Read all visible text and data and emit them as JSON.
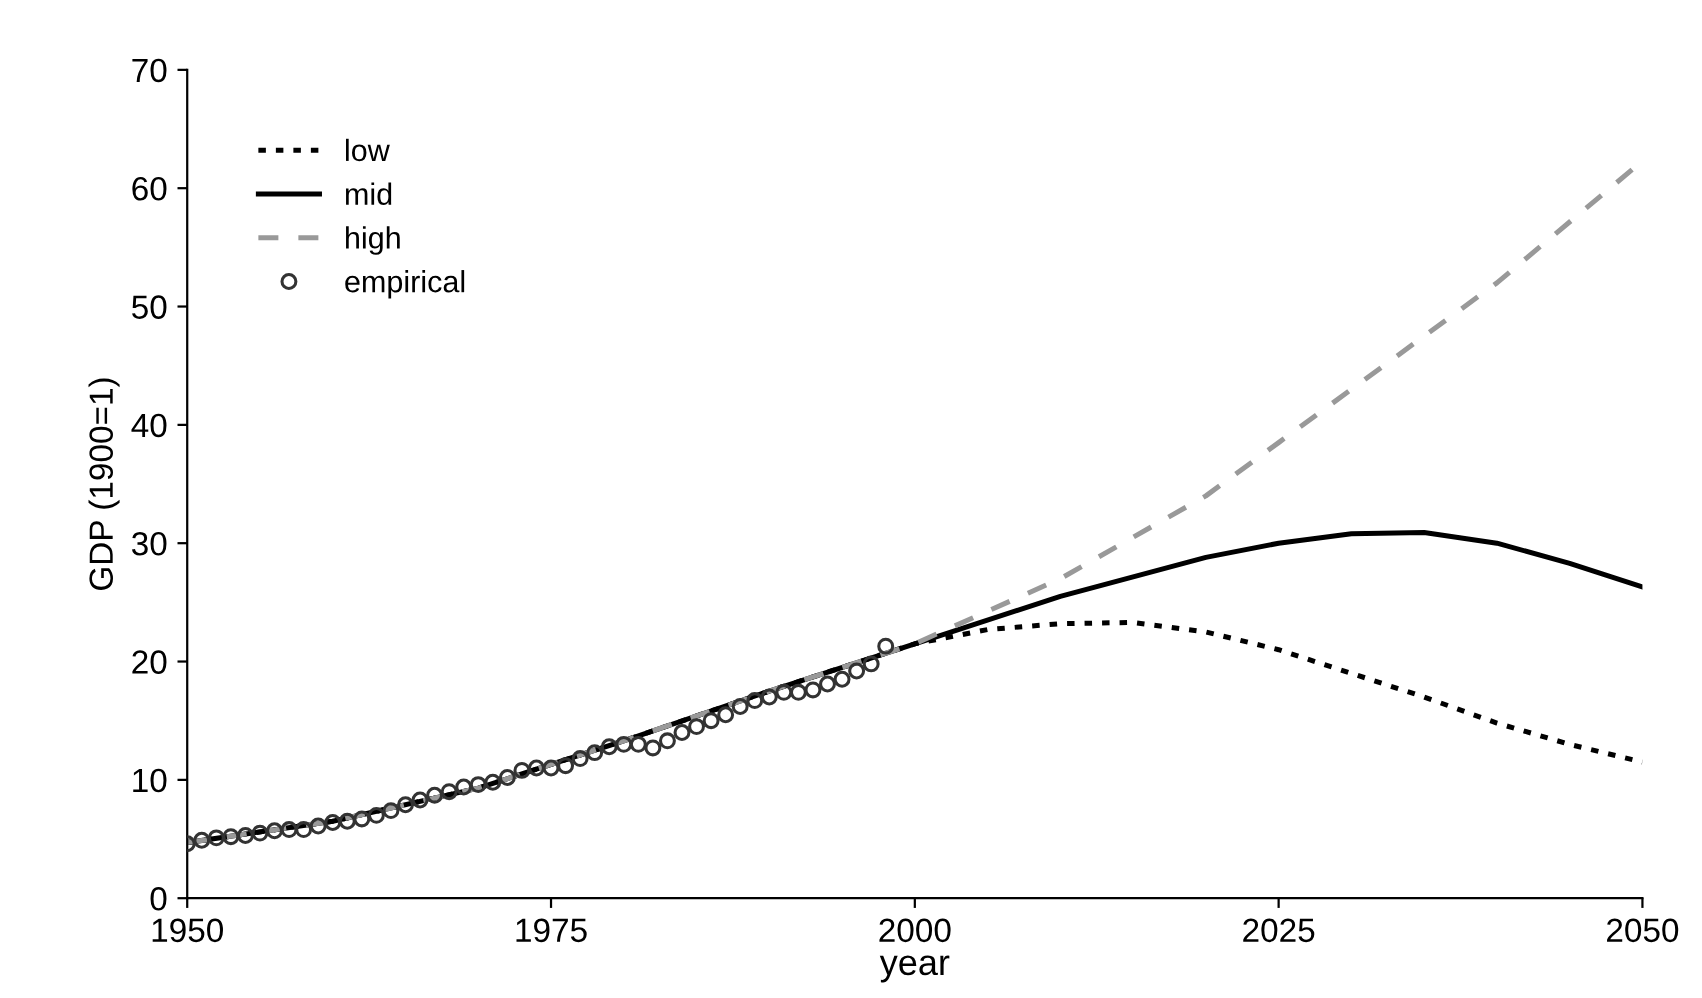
{
  "chart_data": {
    "type": "line",
    "xlabel": "year",
    "ylabel": "GDP (1900=1)",
    "xlim": [
      1950,
      2050
    ],
    "ylim": [
      0,
      70
    ],
    "xticks": [
      1950,
      1975,
      2000,
      2025,
      2050
    ],
    "yticks": [
      0,
      10,
      20,
      30,
      40,
      50,
      60,
      70
    ],
    "grid": false,
    "legend": "top left",
    "series": [
      {
        "name": "low",
        "color": "#000000",
        "line_style": "dotted",
        "x": [
          1950,
          1960,
          1970,
          1975,
          1980,
          1990,
          2000,
          2005,
          2010,
          2015,
          2020,
          2025,
          2030,
          2035,
          2040,
          2045,
          2050
        ],
        "values": [
          4.7,
          6.5,
          9.3,
          11.3,
          13.3,
          17.5,
          21.5,
          22.7,
          23.2,
          23.3,
          22.5,
          21,
          19,
          17,
          14.8,
          13,
          11.5
        ]
      },
      {
        "name": "mid",
        "color": "#000000",
        "line_style": "solid",
        "x": [
          1950,
          1960,
          1970,
          1975,
          1980,
          1990,
          2000,
          2010,
          2020,
          2025,
          2030,
          2035,
          2040,
          2045,
          2050
        ],
        "values": [
          4.7,
          6.5,
          9.3,
          11.3,
          13.3,
          17.5,
          21.5,
          25.5,
          28.8,
          30,
          30.8,
          30.9,
          30,
          28.3,
          26.3
        ]
      },
      {
        "name": "high",
        "color": "#999999",
        "line_style": "dashed",
        "x": [
          1950,
          1960,
          1970,
          1975,
          1980,
          1990,
          2000,
          2010,
          2020,
          2025,
          2030,
          2040,
          2050
        ],
        "values": [
          4.7,
          6.5,
          9.3,
          11.3,
          13.3,
          17.5,
          21.5,
          27,
          34,
          38.5,
          43,
          52,
          62.3
        ]
      },
      {
        "name": "empirical",
        "type": "scatter",
        "marker": "circle",
        "color": "#333333",
        "x": [
          1950,
          1951,
          1952,
          1953,
          1954,
          1955,
          1956,
          1957,
          1958,
          1959,
          1960,
          1961,
          1962,
          1963,
          1964,
          1965,
          1966,
          1967,
          1968,
          1969,
          1970,
          1971,
          1972,
          1973,
          1974,
          1975,
          1976,
          1977,
          1978,
          1979,
          1980,
          1981,
          1982,
          1983,
          1984,
          1985,
          1986,
          1987,
          1988,
          1989,
          1990,
          1991,
          1992,
          1993,
          1994,
          1995,
          1996,
          1997,
          1998
        ],
        "values": [
          4.6,
          4.9,
          5.1,
          5.2,
          5.3,
          5.5,
          5.7,
          5.8,
          5.8,
          6.1,
          6.4,
          6.5,
          6.7,
          7.0,
          7.4,
          7.9,
          8.3,
          8.7,
          9.0,
          9.4,
          9.6,
          9.8,
          10.2,
          10.8,
          11.0,
          11.0,
          11.2,
          11.8,
          12.3,
          12.8,
          13.0,
          13.0,
          12.7,
          13.3,
          14.0,
          14.5,
          15.0,
          15.5,
          16.2,
          16.7,
          17.0,
          17.4,
          17.4,
          17.6,
          18.1,
          18.5,
          19.2,
          19.8,
          21.3
        ]
      }
    ]
  }
}
